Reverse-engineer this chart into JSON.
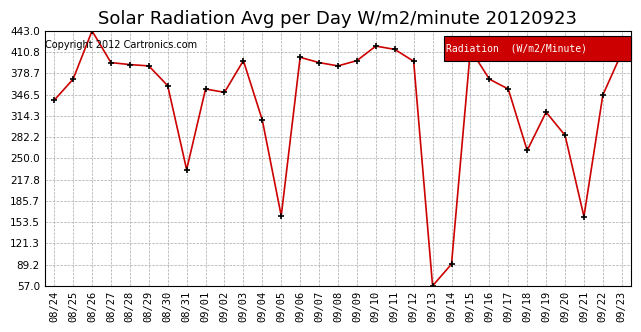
{
  "title": "Solar Radiation Avg per Day W/m2/minute 20120923",
  "copyright_text": "Copyright 2012 Cartronics.com",
  "legend_label": "Radiation  (W/m2/Minute)",
  "dates": [
    "08/24",
    "08/25",
    "08/26",
    "08/27",
    "08/28",
    "08/29",
    "08/30",
    "08/31",
    "09/01",
    "09/02",
    "09/03",
    "09/04",
    "09/05",
    "09/06",
    "09/07",
    "09/08",
    "09/09",
    "09/10",
    "09/11",
    "09/12",
    "09/13",
    "09/14",
    "09/15",
    "09/16",
    "09/17",
    "09/18",
    "09/19",
    "09/20",
    "09/21",
    "09/22",
    "09/23"
  ],
  "values": [
    338,
    370,
    443,
    395,
    392,
    390,
    360,
    233,
    355,
    350,
    398,
    308,
    163,
    403,
    395,
    390,
    398,
    420,
    415,
    397,
    57,
    90,
    415,
    370,
    355,
    262,
    320,
    285,
    162,
    346,
    410
  ],
  "line_color": "#cc0000",
  "marker_color": "#000000",
  "background_color": "#ffffff",
  "plot_bg_color": "#ffffff",
  "grid_color": "#aaaaaa",
  "ylim": [
    57.0,
    443.0
  ],
  "yticks": [
    57.0,
    89.2,
    121.3,
    153.5,
    185.7,
    217.8,
    250.0,
    282.2,
    314.3,
    346.5,
    378.7,
    410.8,
    443.0
  ],
  "legend_bg": "#cc0000",
  "legend_text_color": "#ffffff",
  "title_fontsize": 13,
  "tick_fontsize": 7.5,
  "copyright_fontsize": 7
}
